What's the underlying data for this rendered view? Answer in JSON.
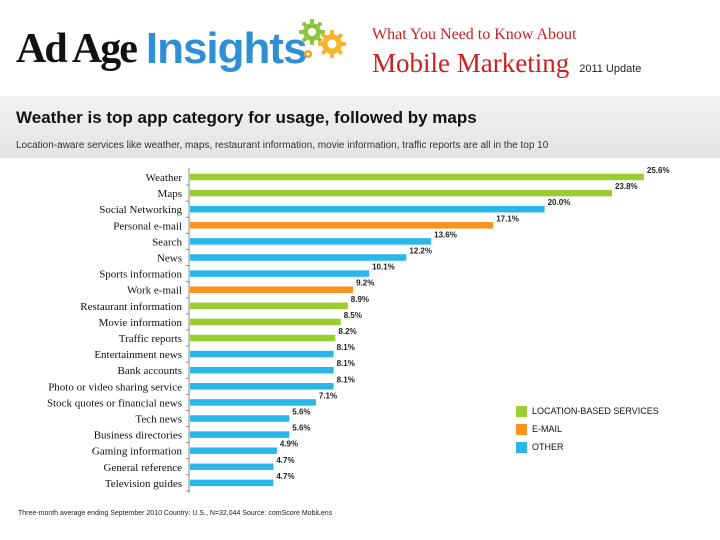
{
  "header": {
    "logo_adage": "Ad Age",
    "logo_insights": "Insights",
    "report_line1": "What You Need to Know About",
    "report_title": "Mobile Marketing",
    "report_update": "2011 Update"
  },
  "headline": "Weather is top app category for usage, followed by maps",
  "subline": "Location-aware services like weather, maps, restaurant information, movie information, traffic reports are all in the top 10",
  "chart_data": {
    "type": "bar",
    "orientation": "horizontal",
    "title": "Weather is top app category for usage, followed by maps",
    "subtitle": "Location-aware services like weather, maps, restaurant information, movie information, traffic reports are all in the top 10",
    "xlim": [
      0,
      26
    ],
    "grid": false,
    "legend_position": "right",
    "categories": [
      "Weather",
      "Maps",
      "Social Networking",
      "Personal e-mail",
      "Search",
      "News",
      "Sports information",
      "Work e-mail",
      "Restaurant information",
      "Movie information",
      "Traffic reports",
      "Entertainment news",
      "Bank accounts",
      "Photo or video sharing service",
      "Stock quotes or financial news",
      "Tech news",
      "Business directories",
      "Gaming information",
      "General reference",
      "Television guides"
    ],
    "values": [
      25.6,
      23.8,
      20.0,
      17.1,
      13.6,
      12.2,
      10.1,
      9.2,
      8.9,
      8.5,
      8.2,
      8.1,
      8.1,
      8.1,
      7.1,
      5.6,
      5.6,
      4.9,
      4.7,
      4.7
    ],
    "value_labels": [
      "25.6%",
      "23.8%",
      "20.0%",
      "17.1%",
      "13.6%",
      "12.2%",
      "10.1%",
      "9.2%",
      "8.9%",
      "8.5%",
      "8.2%",
      "8.1%",
      "8.1%",
      "8.1%",
      "7.1%",
      "5.6%",
      "5.6%",
      "4.9%",
      "4.7%",
      "4.7%"
    ],
    "groups": [
      "location",
      "location",
      "other",
      "email",
      "other",
      "other",
      "other",
      "email",
      "location",
      "location",
      "location",
      "other",
      "other",
      "other",
      "other",
      "other",
      "other",
      "other",
      "other",
      "other"
    ],
    "legend": [
      {
        "key": "location",
        "label": "LOCATION-BASED SERVICES",
        "color": "#9acd32"
      },
      {
        "key": "email",
        "label": "E-MAIL",
        "color": "#f7941d"
      },
      {
        "key": "other",
        "label": "OTHER",
        "color": "#29b6e8"
      }
    ]
  },
  "source": "Three-month average ending September 2010 Country: U.S., N=32,044 Source: comScore MobiLens"
}
